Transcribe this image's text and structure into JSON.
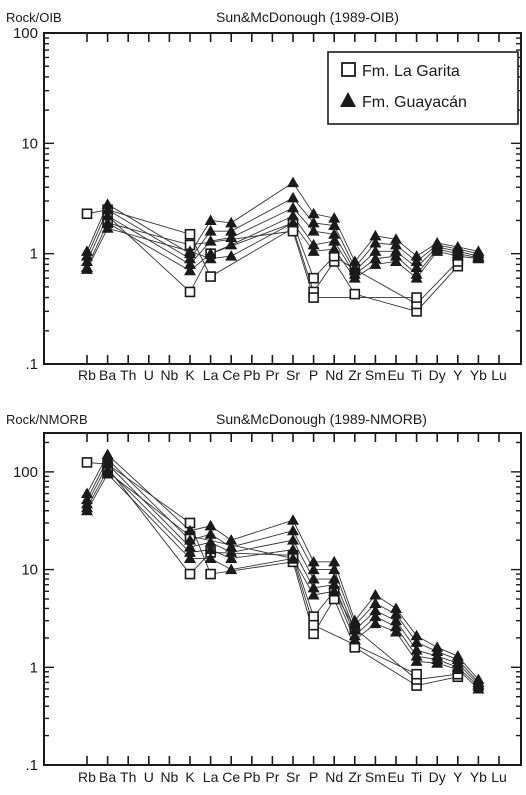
{
  "chart_data": [
    {
      "type": "line",
      "scale": "log",
      "ylabel": "Rock/OIB",
      "title": "Sun&McDonough (1989-OIB)",
      "ylim": [
        0.1,
        100
      ],
      "ytick_labels": [
        "100",
        "10",
        "1",
        ".1"
      ],
      "categories": [
        "Rb",
        "Ba",
        "Th",
        "U",
        "Nb",
        "K",
        "La",
        "Ce",
        "Pb",
        "Pr",
        "Sr",
        "P",
        "Nd",
        "Zr",
        "Sm",
        "Eu",
        "Ti",
        "Dy",
        "Y",
        "Yb",
        "Lu"
      ],
      "series": [
        {
          "name": "Fm. La Garita",
          "marker": "open-square",
          "samples": [
            [
              2.3,
              2.5,
              null,
              null,
              null,
              1.5,
              0.62,
              null,
              null,
              null,
              1.7,
              0.45,
              0.85,
              0.43,
              null,
              null,
              0.3,
              null,
              0.77,
              null,
              null
            ],
            [
              null,
              2.2,
              null,
              null,
              null,
              0.45,
              1.0,
              null,
              null,
              null,
              1.9,
              0.6,
              0.95,
              0.72,
              null,
              null,
              0.35,
              null,
              0.85,
              null,
              null
            ],
            [
              null,
              1.9,
              null,
              null,
              null,
              1.2,
              null,
              null,
              null,
              null,
              1.6,
              0.4,
              null,
              null,
              null,
              null,
              0.4,
              null,
              null,
              null,
              null
            ]
          ]
        },
        {
          "name": "Fm. Guayacán",
          "marker": "filled-triangle",
          "samples": [
            [
              1.05,
              2.8,
              null,
              null,
              null,
              1.0,
              2.0,
              1.9,
              null,
              null,
              4.4,
              2.3,
              2.1,
              0.85,
              1.45,
              1.35,
              0.95,
              1.25,
              1.15,
              1.05,
              null
            ],
            [
              0.95,
              2.5,
              null,
              null,
              null,
              0.9,
              1.6,
              1.6,
              null,
              null,
              3.2,
              1.9,
              1.8,
              0.75,
              1.25,
              1.2,
              0.85,
              1.2,
              1.1,
              1.0,
              null
            ],
            [
              0.85,
              2.2,
              null,
              null,
              null,
              0.8,
              1.3,
              1.4,
              null,
              null,
              2.6,
              1.6,
              1.5,
              0.7,
              1.05,
              1.05,
              0.75,
              1.15,
              1.05,
              0.95,
              null
            ],
            [
              0.75,
              1.9,
              null,
              null,
              null,
              0.7,
              1.0,
              1.2,
              null,
              null,
              2.2,
              1.2,
              1.3,
              0.65,
              0.9,
              0.95,
              0.65,
              1.1,
              1.0,
              0.92,
              null
            ],
            [
              0.72,
              1.7,
              null,
              null,
              null,
              1.05,
              0.9,
              0.95,
              null,
              null,
              1.9,
              1.05,
              1.1,
              0.6,
              0.8,
              0.85,
              0.6,
              1.05,
              0.95,
              0.9,
              null
            ]
          ]
        }
      ],
      "legend_position": "top-right"
    },
    {
      "type": "line",
      "scale": "log",
      "ylabel": "Rock/NMORB",
      "title": "Sun&McDonough (1989-NMORB)",
      "ylim": [
        0.1,
        250
      ],
      "ytick_labels": [
        "100",
        "10",
        "1",
        ".1"
      ],
      "categories": [
        "Rb",
        "Ba",
        "Th",
        "U",
        "Nb",
        "K",
        "La",
        "Ce",
        "Pb",
        "Pr",
        "Sr",
        "P",
        "Nd",
        "Zr",
        "Sm",
        "Eu",
        "Ti",
        "Dy",
        "Y",
        "Yb",
        "Lu"
      ],
      "series": [
        {
          "name": "Fm. La Garita",
          "marker": "open-square",
          "samples": [
            [
              125,
              120,
              null,
              null,
              null,
              30,
              9,
              null,
              null,
              null,
              12,
              2.2,
              5,
              1.6,
              null,
              null,
              0.65,
              null,
              0.8,
              null,
              null
            ],
            [
              null,
              110,
              null,
              null,
              null,
              9,
              15,
              null,
              null,
              null,
              14,
              3.3,
              6,
              2.5,
              null,
              null,
              0.75,
              null,
              0.85,
              null,
              null
            ],
            [
              null,
              100,
              null,
              null,
              null,
              22,
              null,
              null,
              null,
              null,
              13,
              2.7,
              null,
              null,
              null,
              null,
              0.85,
              null,
              null,
              null,
              null
            ]
          ]
        },
        {
          "name": "Fm. Guayacán",
          "marker": "filled-triangle",
          "samples": [
            [
              60,
              150,
              null,
              null,
              null,
              25,
              28,
              20,
              null,
              null,
              32,
              12,
              12,
              3,
              5.5,
              4,
              2.1,
              1.6,
              1.3,
              0.75,
              null
            ],
            [
              52,
              135,
              null,
              null,
              null,
              20,
              23,
              17,
              null,
              null,
              25,
              10,
              10,
              2.7,
              4.5,
              3.5,
              1.8,
              1.45,
              1.2,
              0.7,
              null
            ],
            [
              47,
              120,
              null,
              null,
              null,
              17,
              19,
              15,
              null,
              null,
              20,
              8,
              8,
              2.4,
              3.8,
              3,
              1.5,
              1.3,
              1.1,
              0.67,
              null
            ],
            [
              43,
              105,
              null,
              null,
              null,
              15,
              16,
              13,
              null,
              null,
              16,
              6.5,
              7,
              2.1,
              3.3,
              2.6,
              1.3,
              1.2,
              1.0,
              0.64,
              null
            ],
            [
              40,
              95,
              null,
              null,
              null,
              13,
              13,
              10,
              null,
              null,
              13,
              5.5,
              6,
              1.9,
              2.8,
              2.3,
              1.15,
              1.1,
              0.95,
              0.6,
              null
            ]
          ]
        }
      ]
    }
  ]
}
